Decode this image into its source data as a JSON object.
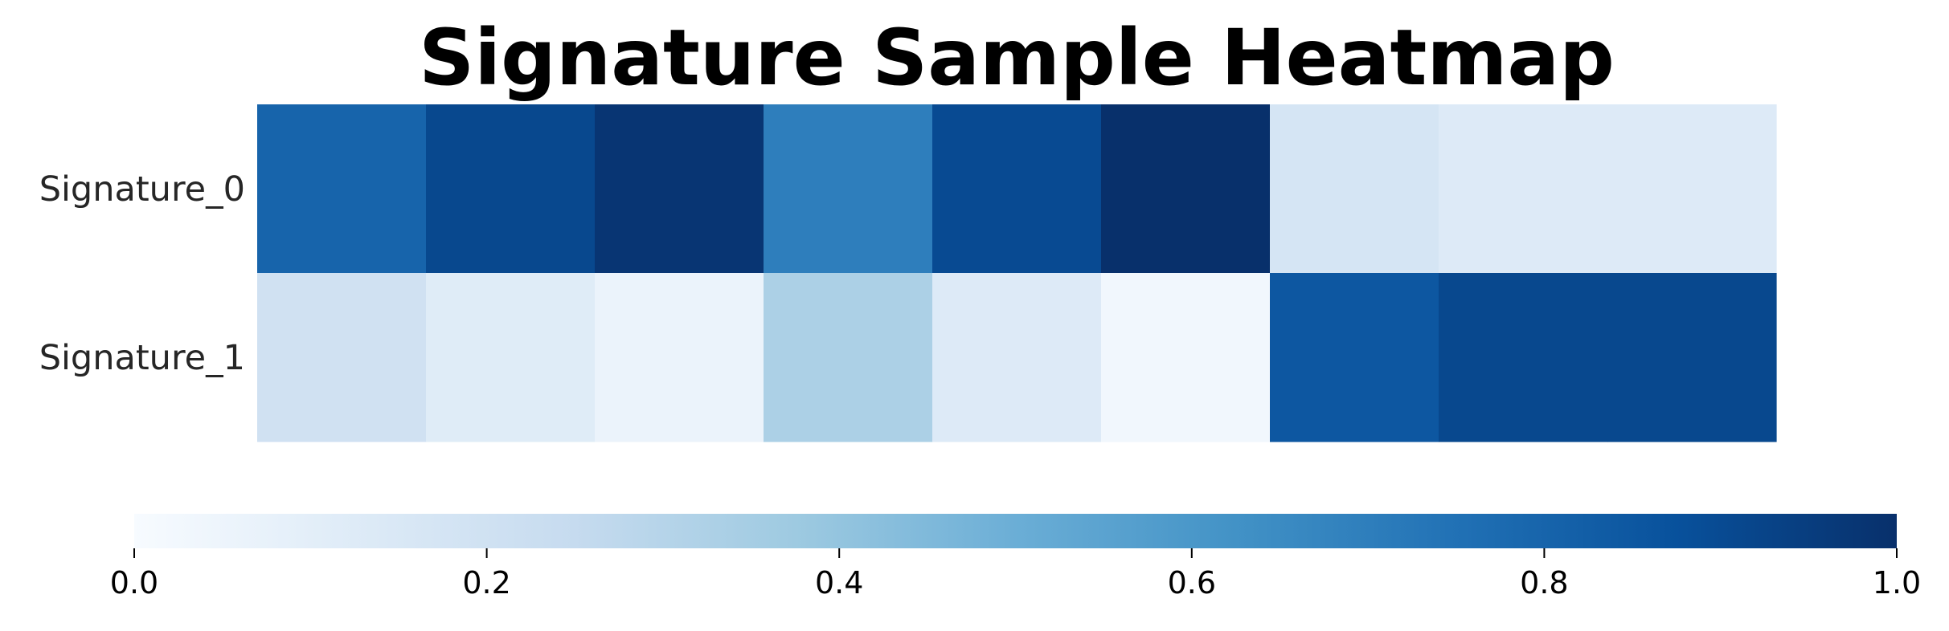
{
  "chart_data": {
    "type": "heatmap",
    "title": "Signature Sample Heatmap",
    "rows": [
      "Signature_0",
      "Signature_1"
    ],
    "values": [
      [
        0.8,
        0.91,
        0.98,
        0.7,
        0.9,
        1.0,
        0.17,
        0.13,
        0.13
      ],
      [
        0.2,
        0.12,
        0.06,
        0.33,
        0.13,
        0.03,
        0.85,
        0.91,
        0.91
      ]
    ],
    "colormap": "Blues",
    "colormap_stops": [
      "#f7fbff",
      "#deebf7",
      "#c6dbef",
      "#9ecae1",
      "#6baed6",
      "#4292c6",
      "#2171b5",
      "#08519c",
      "#08306b"
    ],
    "colorbar": {
      "orientation": "horizontal",
      "range": [
        0.0,
        1.0
      ],
      "ticks": [
        "0.0",
        "0.2",
        "0.4",
        "0.6",
        "0.8",
        "1.0"
      ]
    },
    "xlabel": "",
    "ylabel": ""
  }
}
